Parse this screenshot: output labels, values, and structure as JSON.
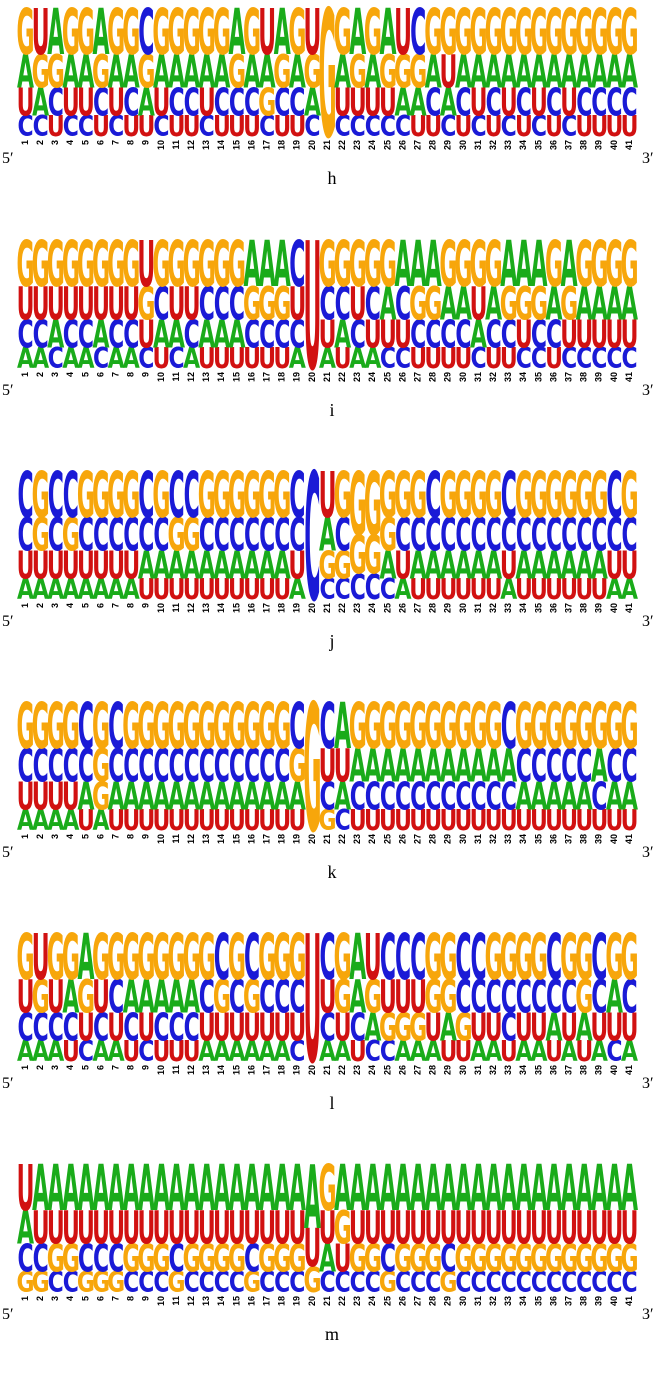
{
  "colors": {
    "A": "#1aab1a",
    "C": "#1a1ad6",
    "G": "#f7a60b",
    "U": "#d11111"
  },
  "end_labels": {
    "left": "5′",
    "right": "3′"
  },
  "panels": [
    {
      "label": "h",
      "columns": [
        "CUAG",
        "CAGU",
        "UCGA",
        "CUAG",
        "CUAG",
        "UCGA",
        "CUAG",
        "UCAG",
        "UAGC",
        "CUAG",
        "UCAG",
        "UCAG",
        "CUAG",
        "UCAG",
        "UCGA",
        "UCAG",
        "CGAU",
        "UCGA",
        "UCAG",
        "CAGU",
        "G",
        "CUAG",
        "CUGA",
        "CUAG",
        "CUGA",
        "CAGU",
        "UAGC",
        "UCAG",
        "CAUG",
        "UCAG",
        "CUAG",
        "UCAG",
        "CUAG",
        "UCAG",
        "CUAG",
        "UCAG",
        "CUAG",
        "UCAG",
        "UCAG",
        "UCAG",
        "UCAG"
      ]
    },
    {
      "label": "i",
      "columns": [
        "ACUG",
        "ACUG",
        "CAUG",
        "ACUG",
        "ACUG",
        "CAUG",
        "ACUG",
        "ACUG",
        "CUGU",
        "UACG",
        "CAUG",
        "ACUG",
        "UACG",
        "UACG",
        "UACG",
        "UCGA",
        "UCGA",
        "UCGA",
        "ACUC",
        "U",
        "AUCG",
        "UACG",
        "ACUG",
        "AUCG",
        "CUAG",
        "CUCA",
        "UCGA",
        "UCGA",
        "UCAG",
        "UCAG",
        "CAUG",
        "UCAG",
        "UCGA",
        "CUGA",
        "CCGA",
        "UCAG",
        "CUGA",
        "CUAG",
        "CUAG",
        "CUAG",
        "CUAG"
      ]
    },
    {
      "label": "j",
      "columns": [
        "AUCC",
        "AUGG",
        "AUCC",
        "AUGC",
        "AUCG",
        "AUCG",
        "AUCG",
        "AUCG",
        "UACC",
        "UACG",
        "UAGC",
        "UAGC",
        "UACG",
        "UACG",
        "UACG",
        "UACG",
        "UACG",
        "UACG",
        "AUCC",
        "C",
        "CGAU",
        "CGCG",
        "CGG",
        "CGG",
        "CAGG",
        "AUCG",
        "UACG",
        "UACC",
        "UACG",
        "UACG",
        "UACG",
        "UACG",
        "AUCC",
        "UACG",
        "UACG",
        "UACG",
        "UACG",
        "UACG",
        "UACG",
        "AUCC",
        "AUCG"
      ]
    },
    {
      "label": "k",
      "columns": [
        "AUCG",
        "AUCG",
        "AUCG",
        "AUCG",
        "UACC",
        "AGGG",
        "UACC",
        "UACG",
        "UACG",
        "UACG",
        "UACG",
        "UACG",
        "UACG",
        "UACG",
        "UACG",
        "UACG",
        "UACG",
        "UACG",
        "UAGC",
        "G",
        "GCUC",
        "CAUA",
        "UCAG",
        "UCAG",
        "UCAG",
        "UCAG",
        "UCAG",
        "UCAG",
        "UCAG",
        "UCAG",
        "UCAG",
        "UCAG",
        "UCAC",
        "UACG",
        "UACG",
        "UACG",
        "UACG",
        "UACG",
        "UCAG",
        "UACG",
        "UACG"
      ]
    },
    {
      "label": "l",
      "columns": [
        "ACUG",
        "ACGU",
        "ACUG",
        "UCAG",
        "CUGA",
        "ACUG",
        "AUCG",
        "UCAG",
        "CUAG",
        "UCAG",
        "UCAG",
        "UCAG",
        "AUCG",
        "AUGC",
        "AUCG",
        "AUGC",
        "AUCG",
        "AUCG",
        "CUCG",
        "U",
        "ACUC",
        "AUGG",
        "UCAA",
        "CAGU",
        "CGUC",
        "AGUC",
        "AGUC",
        "AUGG",
        "UAGG",
        "UGCC",
        "AUCC",
        "AUCG",
        "UCCG",
        "AUCG",
        "AUCG",
        "UACC",
        "AUCG",
        "UAGG",
        "AUCC",
        "CUAG",
        "AUCG"
      ]
    },
    {
      "label": "m",
      "columns": [
        "GCAU",
        "GCUA",
        "CGUA",
        "CGUA",
        "GCUA",
        "GCUA",
        "GCUA",
        "CGUA",
        "CGUA",
        "CGUA",
        "GCUA",
        "CGUA",
        "CGUA",
        "CGUA",
        "CGUA",
        "GCUA",
        "CGUA",
        "CGUA",
        "CGUA",
        "GUA",
        "CAUG",
        "CUGA",
        "CGUA",
        "CGUA",
        "GCUA",
        "CGUA",
        "CGUA",
        "CGUA",
        "GCUA",
        "CGUA",
        "CGUA",
        "CGUA",
        "CGUA",
        "CGUA",
        "CGUA",
        "CGUA",
        "CGUA",
        "CGUA",
        "CGUA",
        "CGUA",
        "CGUA"
      ]
    }
  ]
}
